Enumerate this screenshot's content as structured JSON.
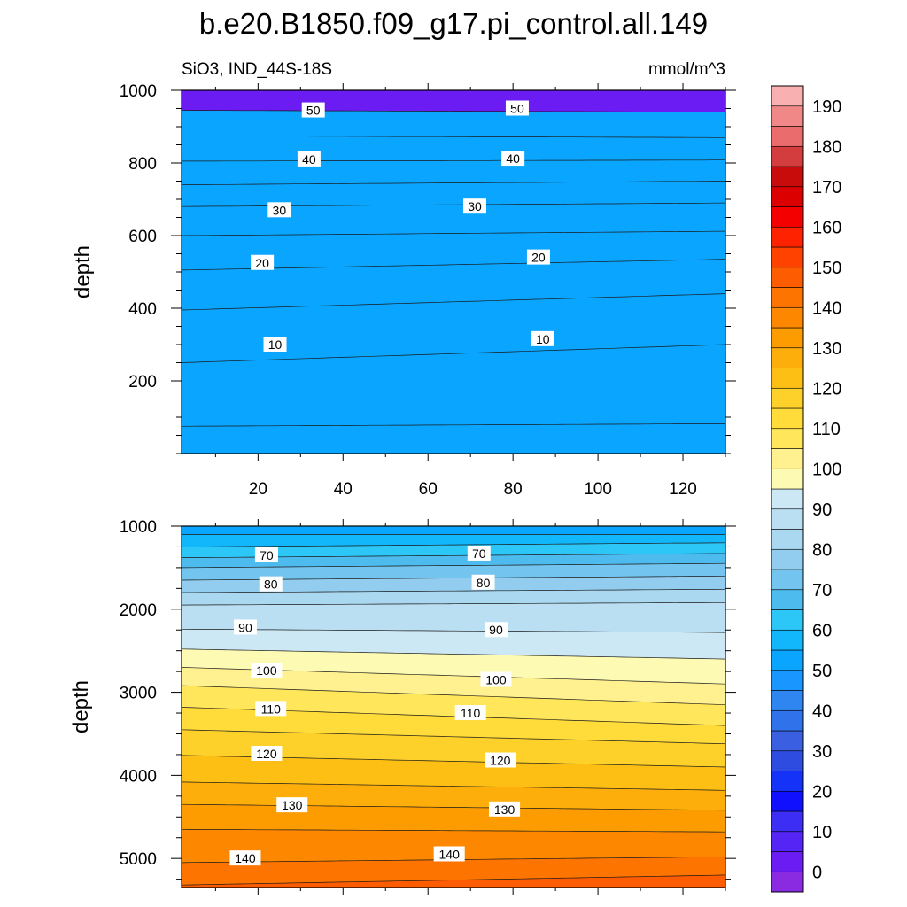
{
  "chart_data": {
    "type": "contour",
    "title": "b.e20.B1850.f09_g17.pi_control.all.149",
    "left_string": "SiO3, IND_44S-18S",
    "right_string": "mmol/m^3",
    "xlabel": "",
    "ylabel": "depth",
    "xlim": [
      2,
      130
    ],
    "x_ticks": [
      20,
      40,
      60,
      80,
      100,
      120
    ],
    "grid": false,
    "panels": [
      {
        "name": "upper",
        "ylim": [
          1000,
          0
        ],
        "y_ticks": [
          200,
          400,
          600,
          800,
          1000
        ],
        "contour_lines": [
          {
            "level": 5,
            "depth_at_x": [
              [
                2,
                75
              ],
              [
                130,
                82
              ]
            ]
          },
          {
            "level": 10,
            "depth_at_x": [
              [
                2,
                250
              ],
              [
                130,
                300
              ]
            ]
          },
          {
            "level": 15,
            "depth_at_x": [
              [
                2,
                395
              ],
              [
                130,
                440
              ]
            ]
          },
          {
            "level": 20,
            "depth_at_x": [
              [
                2,
                505
              ],
              [
                130,
                535
              ]
            ]
          },
          {
            "level": 25,
            "depth_at_x": [
              [
                2,
                600
              ],
              [
                130,
                612
              ]
            ]
          },
          {
            "level": 30,
            "depth_at_x": [
              [
                2,
                680
              ],
              [
                130,
                690
              ]
            ]
          },
          {
            "level": 35,
            "depth_at_x": [
              [
                2,
                740
              ],
              [
                130,
                750
              ]
            ]
          },
          {
            "level": 40,
            "depth_at_x": [
              [
                2,
                805
              ],
              [
                130,
                808
              ]
            ]
          },
          {
            "level": 45,
            "depth_at_x": [
              [
                2,
                875
              ],
              [
                130,
                870
              ]
            ]
          },
          {
            "level": 50,
            "depth_at_x": [
              [
                2,
                945
              ],
              [
                130,
                940
              ]
            ]
          }
        ],
        "labels": [
          {
            "text": "10",
            "x": 24,
            "depth": 300
          },
          {
            "text": "10",
            "x": 87,
            "depth": 315
          },
          {
            "text": "20",
            "x": 21,
            "depth": 525
          },
          {
            "text": "20",
            "x": 86,
            "depth": 540
          },
          {
            "text": "30",
            "x": 25,
            "depth": 670
          },
          {
            "text": "30",
            "x": 71,
            "depth": 680
          },
          {
            "text": "40",
            "x": 32,
            "depth": 810
          },
          {
            "text": "40",
            "x": 80,
            "depth": 812
          },
          {
            "text": "50",
            "x": 33,
            "depth": 945
          },
          {
            "text": "50",
            "x": 81,
            "depth": 950
          }
        ]
      },
      {
        "name": "lower",
        "ylim": [
          1000,
          5350
        ],
        "y_ticks": [
          1000,
          2000,
          3000,
          4000,
          5000
        ],
        "contour_lines": [
          {
            "level": 55,
            "depth_at_x": [
              [
                2,
                1100
              ],
              [
                130,
                1100
              ]
            ]
          },
          {
            "level": 60,
            "depth_at_x": [
              [
                2,
                1250
              ],
              [
                130,
                1200
              ]
            ]
          },
          {
            "level": 65,
            "depth_at_x": [
              [
                2,
                1380
              ],
              [
                130,
                1330
              ]
            ]
          },
          {
            "level": 70,
            "depth_at_x": [
              [
                2,
                1500
              ],
              [
                130,
                1450
              ]
            ]
          },
          {
            "level": 75,
            "depth_at_x": [
              [
                2,
                1650
              ],
              [
                130,
                1600
              ]
            ]
          },
          {
            "level": 80,
            "depth_at_x": [
              [
                2,
                1800
              ],
              [
                130,
                1760
              ]
            ]
          },
          {
            "level": 85,
            "depth_at_x": [
              [
                2,
                1950
              ],
              [
                130,
                1920
              ]
            ]
          },
          {
            "level": 90,
            "depth_at_x": [
              [
                2,
                2240
              ],
              [
                130,
                2280
              ]
            ]
          },
          {
            "level": 95,
            "depth_at_x": [
              [
                2,
                2480
              ],
              [
                130,
                2600
              ]
            ]
          },
          {
            "level": 100,
            "depth_at_x": [
              [
                2,
                2700
              ],
              [
                130,
                2900
              ]
            ]
          },
          {
            "level": 105,
            "depth_at_x": [
              [
                2,
                2920
              ],
              [
                130,
                3150
              ]
            ]
          },
          {
            "level": 110,
            "depth_at_x": [
              [
                2,
                3180
              ],
              [
                130,
                3400
              ]
            ]
          },
          {
            "level": 115,
            "depth_at_x": [
              [
                2,
                3450
              ],
              [
                130,
                3620
              ]
            ]
          },
          {
            "level": 120,
            "depth_at_x": [
              [
                2,
                3760
              ],
              [
                130,
                3900
              ]
            ]
          },
          {
            "level": 125,
            "depth_at_x": [
              [
                2,
                4080
              ],
              [
                130,
                4180
              ]
            ]
          },
          {
            "level": 130,
            "depth_at_x": [
              [
                2,
                4350
              ],
              [
                130,
                4420
              ]
            ]
          },
          {
            "level": 135,
            "depth_at_x": [
              [
                2,
                4650
              ],
              [
                130,
                4680
              ]
            ]
          },
          {
            "level": 140,
            "depth_at_x": [
              [
                2,
                5050
              ],
              [
                130,
                4980
              ]
            ]
          },
          {
            "level": 145,
            "depth_at_x": [
              [
                2,
                5320
              ],
              [
                130,
                5200
              ]
            ]
          }
        ],
        "labels": [
          {
            "text": "70",
            "x": 22,
            "depth": 1350
          },
          {
            "text": "70",
            "x": 72,
            "depth": 1330
          },
          {
            "text": "80",
            "x": 23,
            "depth": 1700
          },
          {
            "text": "80",
            "x": 73,
            "depth": 1680
          },
          {
            "text": "90",
            "x": 17,
            "depth": 2220
          },
          {
            "text": "90",
            "x": 76,
            "depth": 2250
          },
          {
            "text": "100",
            "x": 22,
            "depth": 2740
          },
          {
            "text": "100",
            "x": 76,
            "depth": 2850
          },
          {
            "text": "110",
            "x": 23,
            "depth": 3200
          },
          {
            "text": "110",
            "x": 70,
            "depth": 3250
          },
          {
            "text": "120",
            "x": 22,
            "depth": 3740
          },
          {
            "text": "120",
            "x": 77,
            "depth": 3820
          },
          {
            "text": "130",
            "x": 28,
            "depth": 4360
          },
          {
            "text": "130",
            "x": 78,
            "depth": 4410
          },
          {
            "text": "140",
            "x": 17,
            "depth": 5000
          },
          {
            "text": "140",
            "x": 65,
            "depth": 4950
          }
        ]
      }
    ],
    "colorbar": {
      "levels": [
        0,
        5,
        10,
        15,
        20,
        25,
        30,
        35,
        40,
        45,
        50,
        55,
        60,
        65,
        70,
        75,
        80,
        85,
        90,
        95,
        100,
        105,
        110,
        115,
        120,
        125,
        130,
        135,
        140,
        145,
        150,
        155,
        160,
        165,
        170,
        175,
        180,
        185,
        190
      ],
      "tick_labels": [
        "0",
        "10",
        "20",
        "30",
        "40",
        "50",
        "60",
        "70",
        "80",
        "90",
        "100",
        "110",
        "120",
        "130",
        "140",
        "150",
        "160",
        "170",
        "180",
        "190"
      ],
      "colors": [
        "#8a2be2",
        "#6a1cf2",
        "#5525f5",
        "#3d2ef5",
        "#1010ff",
        "#1432f8",
        "#2f4ce0",
        "#3a5fe0",
        "#2f72ea",
        "#2f86f0",
        "#1996ff",
        "#0aa5ff",
        "#12b7fb",
        "#2cc6f7",
        "#4ebbee",
        "#73c4ee",
        "#92cdef",
        "#a9d8f0",
        "#bbdff2",
        "#cce8f4",
        "#fdfbb3",
        "#fff190",
        "#ffe65a",
        "#ffdc3a",
        "#fdd02a",
        "#fdbf14",
        "#fdae0a",
        "#fd9c00",
        "#fd8800",
        "#fe7400",
        "#fd5c00",
        "#ff4200",
        "#ff2200",
        "#f50000",
        "#dd0000",
        "#c80c0c",
        "#d33d3d",
        "#ea6c6c",
        "#f08888",
        "#f8b0b0"
      ]
    }
  }
}
